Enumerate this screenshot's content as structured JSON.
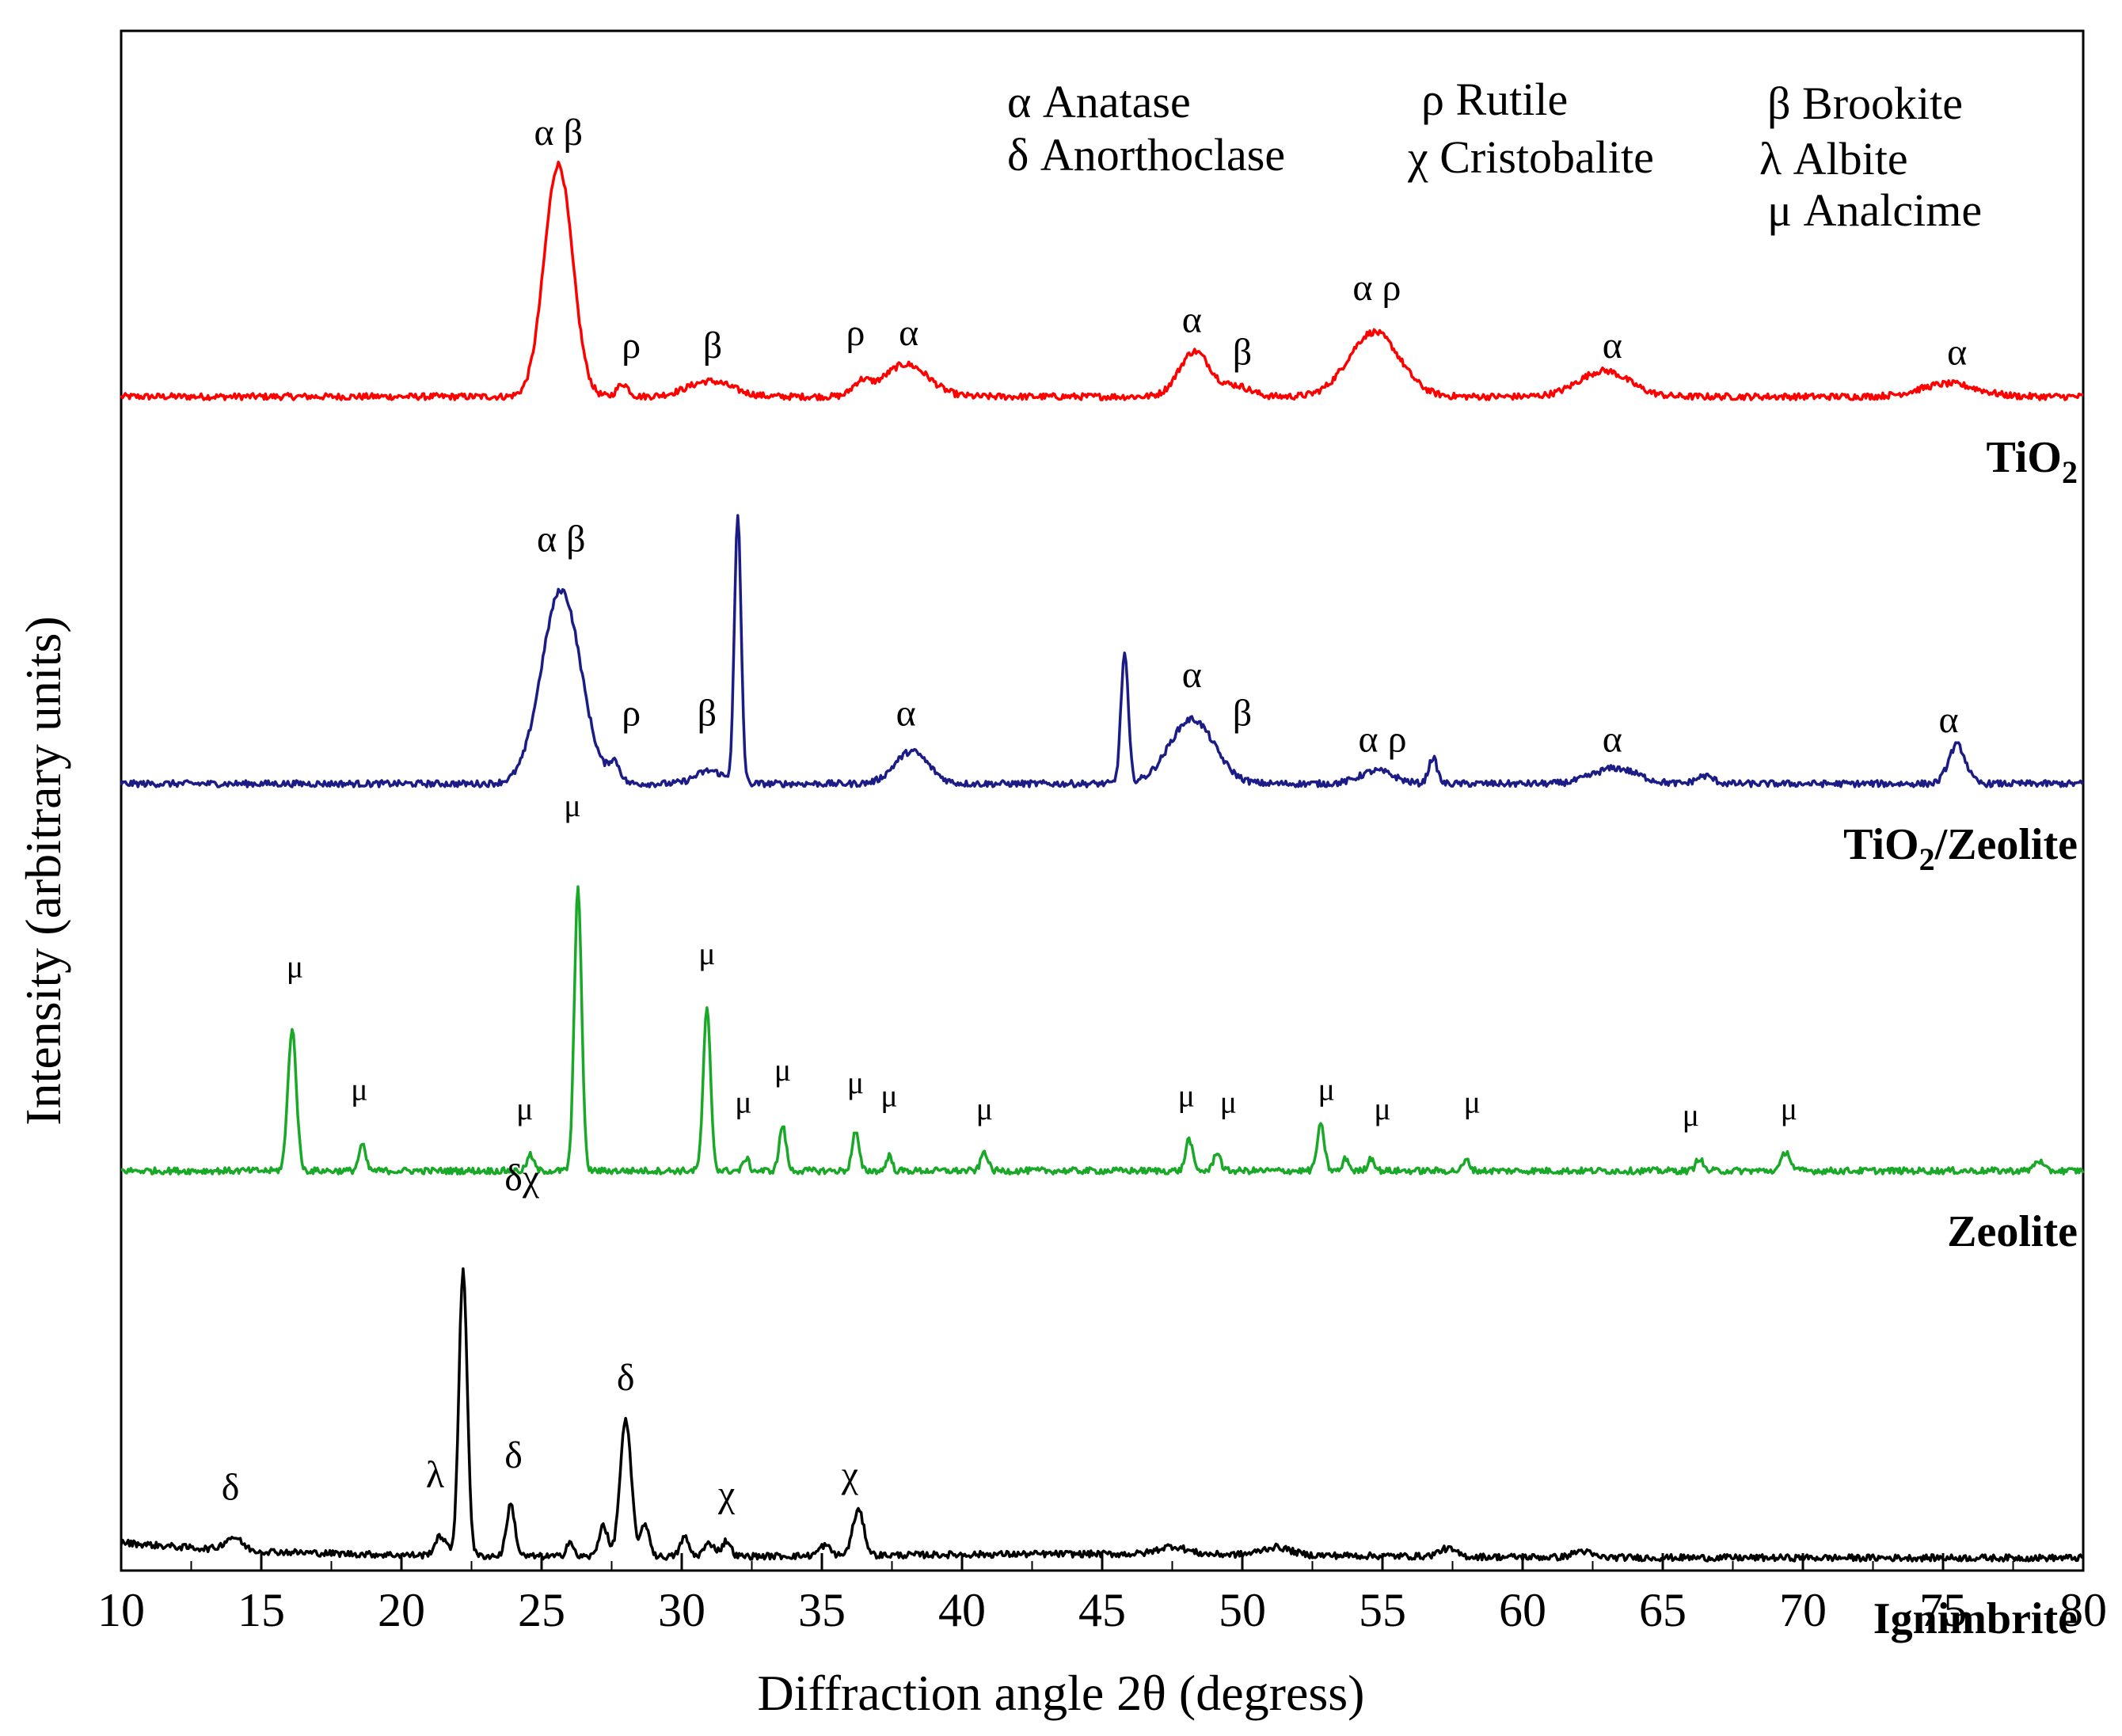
{
  "chart_data": {
    "type": "line",
    "xlabel": "Diffraction angle 2θ (degress)",
    "ylabel": "Intensity (arbitrary units)",
    "xlim": [
      10,
      80
    ],
    "ylim": [
      0,
      12
    ],
    "xticks": [
      10,
      15,
      20,
      25,
      30,
      35,
      40,
      45,
      50,
      55,
      60,
      65,
      70,
      75,
      80
    ],
    "legend": [
      {
        "symbol": "α",
        "name": "Anatase"
      },
      {
        "symbol": "ρ",
        "name": "Rutile"
      },
      {
        "symbol": "β",
        "name": "Brookite"
      },
      {
        "symbol": "δ",
        "name": "Anorthoclase"
      },
      {
        "symbol": "χ",
        "name": "Cristobalite"
      },
      {
        "symbol": "λ",
        "name": "Albite"
      },
      {
        "symbol": "μ",
        "name": "Analcime"
      }
    ],
    "series": [
      {
        "name": "TiO2",
        "label_main": "TiO",
        "label_sub": "2",
        "label_rest": "",
        "color": "#ff0000",
        "baseline": 9.0,
        "peaks": [
          [
            25.6,
            1.8,
            0.5
          ],
          [
            27.9,
            0.1,
            0.2
          ],
          [
            31.0,
            0.12,
            0.8
          ],
          [
            36.4,
            0.1,
            0.3
          ],
          [
            38.0,
            0.25,
            0.8
          ],
          [
            48.3,
            0.35,
            0.55
          ],
          [
            49.8,
            0.08,
            0.5
          ],
          [
            54.7,
            0.5,
            0.9
          ],
          [
            62.9,
            0.2,
            0.9
          ],
          [
            75.2,
            0.1,
            1.0
          ]
        ],
        "annotations": [
          {
            "x": 25.6,
            "y": 10.95,
            "text": "α β"
          },
          {
            "x": 28.2,
            "y": 9.3,
            "text": "ρ"
          },
          {
            "x": 31.1,
            "y": 9.3,
            "text": "β"
          },
          {
            "x": 36.2,
            "y": 9.4,
            "text": "ρ"
          },
          {
            "x": 38.1,
            "y": 9.4,
            "text": "α"
          },
          {
            "x": 48.2,
            "y": 9.5,
            "text": "α"
          },
          {
            "x": 50.0,
            "y": 9.25,
            "text": "β"
          },
          {
            "x": 54.8,
            "y": 9.75,
            "text": "α ρ"
          },
          {
            "x": 63.2,
            "y": 9.3,
            "text": "α"
          },
          {
            "x": 75.5,
            "y": 9.25,
            "text": "α"
          }
        ]
      },
      {
        "name": "TiO2/Zeolite",
        "label_main": "TiO",
        "label_sub": "2",
        "label_rest": "/Zeolite",
        "color": "#1c1c86",
        "baseline": 6.0,
        "peaks": [
          [
            25.7,
            1.5,
            0.7
          ],
          [
            27.6,
            0.15,
            0.2
          ],
          [
            31.0,
            0.1,
            0.5
          ],
          [
            32.0,
            2.05,
            0.12
          ],
          [
            38.2,
            0.25,
            0.6
          ],
          [
            45.8,
            1.0,
            0.13
          ],
          [
            48.2,
            0.5,
            0.8
          ],
          [
            54.8,
            0.1,
            0.6
          ],
          [
            56.8,
            0.2,
            0.15
          ],
          [
            63.3,
            0.12,
            0.8
          ],
          [
            66.5,
            0.06,
            0.3
          ],
          [
            75.5,
            0.3,
            0.3
          ]
        ],
        "annotations": [
          {
            "x": 25.7,
            "y": 7.8,
            "text": "α β"
          },
          {
            "x": 28.2,
            "y": 6.45,
            "text": "ρ"
          },
          {
            "x": 30.9,
            "y": 6.45,
            "text": "β"
          },
          {
            "x": 38.0,
            "y": 6.45,
            "text": "α"
          },
          {
            "x": 48.2,
            "y": 6.75,
            "text": "α"
          },
          {
            "x": 50.0,
            "y": 6.45,
            "text": "β"
          },
          {
            "x": 55.0,
            "y": 6.25,
            "text": "α ρ"
          },
          {
            "x": 63.2,
            "y": 6.25,
            "text": "α"
          },
          {
            "x": 75.2,
            "y": 6.4,
            "text": "α"
          }
        ]
      },
      {
        "name": "Zeolite",
        "label_main": "Zeolite",
        "label_sub": "",
        "label_rest": "",
        "color": "#1aa828",
        "baseline": 3.0,
        "peaks": [
          [
            16.1,
            1.1,
            0.15
          ],
          [
            18.6,
            0.2,
            0.12
          ],
          [
            24.6,
            0.12,
            0.12
          ],
          [
            26.3,
            2.2,
            0.13
          ],
          [
            30.9,
            1.25,
            0.13
          ],
          [
            32.3,
            0.1,
            0.1
          ],
          [
            33.6,
            0.35,
            0.12
          ],
          [
            36.2,
            0.3,
            0.12
          ],
          [
            37.4,
            0.12,
            0.1
          ],
          [
            40.8,
            0.15,
            0.12
          ],
          [
            48.1,
            0.25,
            0.12
          ],
          [
            49.1,
            0.15,
            0.12
          ],
          [
            52.8,
            0.35,
            0.13
          ],
          [
            53.7,
            0.1,
            0.1
          ],
          [
            54.6,
            0.1,
            0.12
          ],
          [
            58.0,
            0.08,
            0.12
          ],
          [
            66.3,
            0.1,
            0.12
          ],
          [
            69.4,
            0.15,
            0.15
          ],
          [
            78.4,
            0.08,
            0.15
          ]
        ],
        "annotations": [
          {
            "x": 26.1,
            "y": 5.75,
            "text": "μ"
          },
          {
            "x": 16.2,
            "y": 4.5,
            "text": "μ"
          },
          {
            "x": 18.5,
            "y": 3.55,
            "text": "μ"
          },
          {
            "x": 24.4,
            "y": 3.4,
            "text": "μ"
          },
          {
            "x": 30.9,
            "y": 4.6,
            "text": "μ"
          },
          {
            "x": 32.2,
            "y": 3.45,
            "text": "μ"
          },
          {
            "x": 33.6,
            "y": 3.7,
            "text": "μ"
          },
          {
            "x": 36.2,
            "y": 3.6,
            "text": "μ"
          },
          {
            "x": 37.4,
            "y": 3.5,
            "text": "μ"
          },
          {
            "x": 40.8,
            "y": 3.4,
            "text": "μ"
          },
          {
            "x": 48.0,
            "y": 3.5,
            "text": "μ"
          },
          {
            "x": 49.5,
            "y": 3.45,
            "text": "μ"
          },
          {
            "x": 53.0,
            "y": 3.55,
            "text": "μ"
          },
          {
            "x": 55.0,
            "y": 3.4,
            "text": "μ"
          },
          {
            "x": 58.2,
            "y": 3.45,
            "text": "μ"
          },
          {
            "x": 66.0,
            "y": 3.35,
            "text": "μ"
          },
          {
            "x": 69.5,
            "y": 3.4,
            "text": "μ"
          }
        ]
      },
      {
        "name": "Ignimbrite",
        "label_main": "Ignimbrite",
        "label_sub": "",
        "label_rest": "",
        "color": "#000000",
        "baseline": 0.0,
        "peaks": [
          [
            14.0,
            0.1,
            0.3
          ],
          [
            21.4,
            0.15,
            0.2
          ],
          [
            22.2,
            2.2,
            0.15
          ],
          [
            23.9,
            0.4,
            0.15
          ],
          [
            26.0,
            0.12,
            0.12
          ],
          [
            27.2,
            0.25,
            0.15
          ],
          [
            28.0,
            1.05,
            0.2
          ],
          [
            28.7,
            0.25,
            0.15
          ],
          [
            30.1,
            0.15,
            0.15
          ],
          [
            31.0,
            0.1,
            0.2
          ],
          [
            31.6,
            0.12,
            0.15
          ],
          [
            35.1,
            0.08,
            0.2
          ],
          [
            36.3,
            0.35,
            0.2
          ],
          [
            47.5,
            0.06,
            0.5
          ],
          [
            51.2,
            0.06,
            0.5
          ],
          [
            57.3,
            0.06,
            0.3
          ],
          [
            62.1,
            0.05,
            0.3
          ]
        ],
        "annotations": [
          {
            "x": 24.3,
            "y": 2.85,
            "text": "δχ"
          },
          {
            "x": 13.9,
            "y": 0.45,
            "text": "δ"
          },
          {
            "x": 21.2,
            "y": 0.55,
            "text": "λ"
          },
          {
            "x": 24.0,
            "y": 0.7,
            "text": "δ"
          },
          {
            "x": 28.0,
            "y": 1.3,
            "text": "δ"
          },
          {
            "x": 31.6,
            "y": 0.4,
            "text": "χ"
          },
          {
            "x": 36.0,
            "y": 0.55,
            "text": "χ"
          }
        ]
      }
    ]
  }
}
